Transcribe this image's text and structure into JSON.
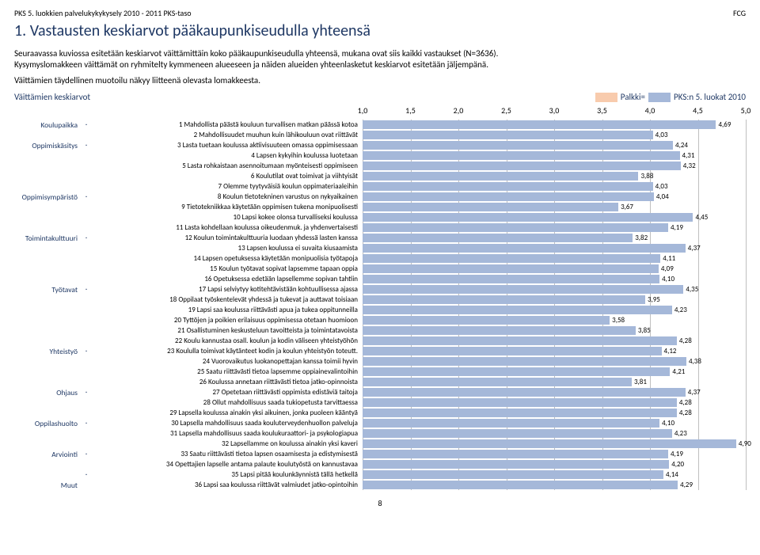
{
  "header": {
    "left": "PKS 5. luokkien palvelukykykysely 2010 - 2011  PKS-taso",
    "right": "FCG"
  },
  "title": "1. Vastausten keskiarvot pääkaupunkiseudulla yhteensä",
  "intro_lines": [
    "Seuraavassa kuviossa esitetään keskiarvot väittämittäin koko pääkaupunkiseudulla yhteensä, mukana ovat siis  kaikki vastaukset (N=3636).",
    "Kysymyslomakkeen väittämät  on ryhmitelty kymmeneen alueeseen ja näiden alueiden yhteenlasketut keskiarvot esitetään jäljempänä.",
    "Väittämien täydellinen muotoilu näkyy liitteenä olevasta lomakkeesta."
  ],
  "legend": {
    "left": "Väittämien keskiarvot",
    "mid": "Palkki=",
    "right": "PKS:n 5. luokat 2010"
  },
  "chart": {
    "type": "bar",
    "xmin": 1.0,
    "xmax": 5.0,
    "xtick_step": 0.5,
    "xticks": [
      "1,0",
      "1,5",
      "2,0",
      "2,5",
      "3,0",
      "3,5",
      "4,0",
      "4,5",
      "5,0"
    ],
    "bar_color": "#a5b8d9",
    "accent_color": "#f8cbad",
    "grid_color": "#bfbfbf",
    "label_color": "#1f3864",
    "bar_label_fontsize": 9,
    "stmt_fontsize": 9,
    "cat_fontsize": 9.5,
    "categories": [
      "Koulupaikka",
      "Oppimiskäsitys",
      "Oppimisympäristö",
      "Toimintakulttuuri",
      "Työtavat",
      "Yhteistyö",
      "Ohjaus",
      "Oppilashuolto",
      "Arviointi",
      "Muut"
    ],
    "rows": [
      {
        "cat": "Koulupaikka",
        "dot": "·",
        "stmt": "1 Mahdollista päästä kouluun turvallisen matkan päässä kotoa",
        "val": 4.69,
        "label": "4,69"
      },
      {
        "cat": "",
        "dot": "",
        "stmt": "2 Mahdollisuudet  muuhun kuin  lähikouluun ovat riittävät",
        "val": 4.03,
        "label": "4,03"
      },
      {
        "cat": "Oppimiskäsitys",
        "dot": "·",
        "stmt": "3 Lasta tuetaan koulussa aktiivisuuteen omassa oppimisessaan",
        "val": 4.24,
        "label": "4,24"
      },
      {
        "cat": "",
        "dot": "",
        "stmt": "4 Lapsen kykyihin koulussa luotetaan",
        "val": 4.31,
        "label": "4,31"
      },
      {
        "cat": "",
        "dot": "",
        "stmt": "5 Lasta rohkaistaan asennoitumaan myönteisesti oppimiseen",
        "val": 4.32,
        "label": "4,32"
      },
      {
        "cat": "",
        "dot": "",
        "stmt": "6 Koulutilat ovat toimivat ja viihtyisät",
        "val": 3.88,
        "label": "3,88"
      },
      {
        "cat": "",
        "dot": "",
        "stmt": "7 Olemme tyytyväisiä koulun oppimateriaaleihin",
        "val": 4.03,
        "label": "4,03"
      },
      {
        "cat": "Oppimisympäristö",
        "dot": "·",
        "stmt": "8 Koulun tietotekninen varustus on nykyaikainen",
        "val": 4.04,
        "label": "4,04"
      },
      {
        "cat": "",
        "dot": "",
        "stmt": "9 Tietotekniikkaa käytetään oppimisen tukena monipuolisesti",
        "val": 3.67,
        "label": "3,67"
      },
      {
        "cat": "",
        "dot": "",
        "stmt": "10 Lapsi kokee olonsa turvalliseksi koulussa",
        "val": 4.45,
        "label": "4,45"
      },
      {
        "cat": "",
        "dot": "",
        "stmt": "11 Lasta kohdellaan koulussa oikeudenmuk. ja yhdenvertaisesti",
        "val": 4.19,
        "label": "4,19"
      },
      {
        "cat": "Toimintakulttuuri",
        "dot": "·",
        "stmt": "12 Koulun toimintakulttuuria luodaan yhdessä lasten kanssa",
        "val": 3.82,
        "label": "3,82"
      },
      {
        "cat": "",
        "dot": "",
        "stmt": "13 Lapsen koulussa ei suvaita kiusaamista",
        "val": 4.37,
        "label": "4,37"
      },
      {
        "cat": "",
        "dot": "",
        "stmt": "14 Lapsen opetuksessa käytetään monipuolisia työtapoja",
        "val": 4.11,
        "label": "4,11"
      },
      {
        "cat": "",
        "dot": "",
        "stmt": "15 Koulun työtavat sopivat lapsemme tapaan oppia",
        "val": 4.09,
        "label": "4,09"
      },
      {
        "cat": "",
        "dot": "",
        "stmt": "16 Opetuksessa edetään lapsellemme sopivan tahtiin",
        "val": 4.1,
        "label": "4,10"
      },
      {
        "cat": "Työtavat",
        "dot": "·",
        "stmt": "17 Lapsi selviytyy kotitehtävistään kohtuullisessa ajassa",
        "val": 4.35,
        "label": "4,35"
      },
      {
        "cat": "",
        "dot": "",
        "stmt": "18 Oppilaat työskentelevät yhdessä ja tukevat ja auttavat toisiaan",
        "val": 3.95,
        "label": "3,95"
      },
      {
        "cat": "",
        "dot": "",
        "stmt": "19 Lapsi saa koulussa riittävästi apua ja tukea oppitunneilla",
        "val": 4.23,
        "label": "4,23"
      },
      {
        "cat": "",
        "dot": "",
        "stmt": "20 Tyttöjen ja poikien erilaisuus oppimisessa otetaan huomioon",
        "val": 3.58,
        "label": "3,58"
      },
      {
        "cat": "",
        "dot": "",
        "stmt": "21 Osallistuminen keskusteluun tavoitteista ja toimintatavoista",
        "val": 3.85,
        "label": "3,85"
      },
      {
        "cat": "",
        "dot": "",
        "stmt": "22 Koulu kannustaa osall. koulun ja kodin väliseen yhteistyöhön",
        "val": 4.28,
        "label": "4,28"
      },
      {
        "cat": "Yhteistyö",
        "dot": "·",
        "stmt": "23 Koululla toimivat käytänteet kodin ja koulun yhteistyön toteutt.",
        "val": 4.12,
        "label": "4,12"
      },
      {
        "cat": "",
        "dot": "",
        "stmt": "24 Vuorovaikutus luokanopettajan kanssa toimii hyvin",
        "val": 4.38,
        "label": "4,38"
      },
      {
        "cat": "",
        "dot": "",
        "stmt": "25 Saatu riittävästi tietoa lapsemme oppiainevalintoihin",
        "val": 4.21,
        "label": "4,21"
      },
      {
        "cat": "",
        "dot": "",
        "stmt": "26 Koulussa annetaan riittävästi tietoa jatko-opinnoista",
        "val": 3.81,
        "label": "3,81"
      },
      {
        "cat": "Ohjaus",
        "dot": "·",
        "stmt": "27 Opetetaan riittävästi oppimista edistäviä taitoja",
        "val": 4.37,
        "label": "4,37"
      },
      {
        "cat": "",
        "dot": "",
        "stmt": "28 Ollut mahdollisuus saada tukiopetusta tarvittaessa",
        "val": 4.28,
        "label": "4,28"
      },
      {
        "cat": "",
        "dot": "",
        "stmt": "29 Lapsella koulussa ainakin yksi aikuinen, jonka puoleen  kääntyä",
        "val": 4.28,
        "label": "4,28"
      },
      {
        "cat": "Oppilashuolto",
        "dot": "·",
        "stmt": "30 Lapsella mahdollisuus saada kouluterveydenhuollon palveluja",
        "val": 4.1,
        "label": "4,10"
      },
      {
        "cat": "",
        "dot": "",
        "stmt": "31 Lapsella mahdollisuus saada koulukuraattori- ja psykologiapua",
        "val": 4.23,
        "label": "4,23"
      },
      {
        "cat": "",
        "dot": "",
        "stmt": "32 Lapsellamme on koulussa ainakin yksi kaveri",
        "val": 4.9,
        "label": "4,90"
      },
      {
        "cat": "Arviointi",
        "dot": "·",
        "stmt": "33 Saatu riittävästi tietoa lapsen osaamisesta ja edistymisestä",
        "val": 4.19,
        "label": "4,19"
      },
      {
        "cat": "",
        "dot": "",
        "stmt": "34 Opettajien lapselle antama palaute koulutyöstä on kannustavaa",
        "val": 4.2,
        "label": "4,20"
      },
      {
        "cat": "",
        "dot": "·",
        "stmt": "35 Lapsi pitää koulunkäynnistä tällä hetkellä",
        "val": 4.14,
        "label": "4,14"
      },
      {
        "cat": "Muut",
        "dot": "",
        "stmt": "36 Lapsi saa koulussa riittävät valmiudet jatko-opintoihin",
        "val": 4.29,
        "label": "4,29"
      }
    ]
  },
  "pagenum": "8"
}
